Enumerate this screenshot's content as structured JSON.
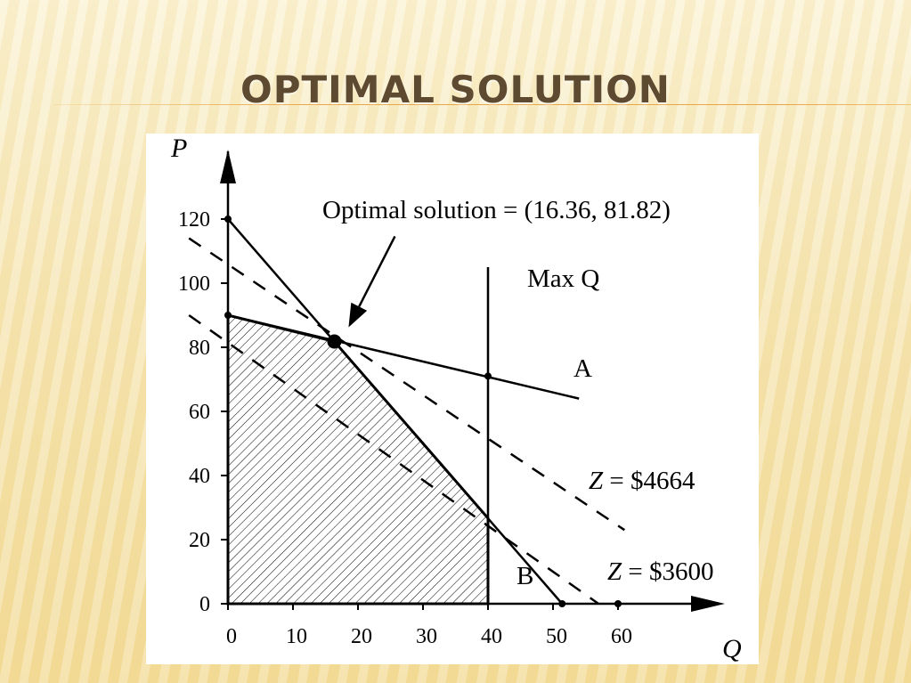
{
  "slide": {
    "title": "OPTIMAL SOLUTION"
  },
  "chart_data": {
    "type": "line",
    "title": "",
    "xlabel": "Q",
    "ylabel": "P",
    "xlim": [
      0,
      60
    ],
    "ylim": [
      0,
      120
    ],
    "x_ticks": [
      "0",
      "10",
      "20",
      "30",
      "40",
      "50",
      "60"
    ],
    "y_ticks": [
      "0",
      "20",
      "40",
      "60",
      "80",
      "100",
      "120"
    ],
    "series": [
      {
        "name": "A",
        "style": "solid",
        "points": [
          [
            0,
            90
          ],
          [
            54,
            64
          ]
        ]
      },
      {
        "name": "B",
        "style": "solid",
        "points": [
          [
            0,
            120
          ],
          [
            51.4,
            0
          ]
        ]
      },
      {
        "name": "Max Q",
        "style": "solid",
        "points": [
          [
            40,
            0
          ],
          [
            40,
            105
          ]
        ]
      },
      {
        "name": "Z = $4664",
        "style": "dashed",
        "points": [
          [
            -6,
            114
          ],
          [
            61,
            23
          ]
        ]
      },
      {
        "name": "Z = $3600",
        "style": "dashed",
        "points": [
          [
            -6,
            90
          ],
          [
            57,
            0
          ]
        ]
      }
    ],
    "feasible_region": [
      [
        0,
        0
      ],
      [
        0,
        90
      ],
      [
        16.36,
        81.82
      ],
      [
        40,
        26.7
      ],
      [
        40,
        0
      ]
    ],
    "marked_points": [
      [
        0,
        120
      ],
      [
        0,
        90
      ],
      [
        40,
        71
      ],
      [
        51.4,
        0
      ],
      [
        60,
        0
      ]
    ],
    "optimal_point": [
      16.36,
      81.82
    ],
    "annotations": {
      "optimal": "Optimal solution = (16.36, 81.82)",
      "max_q": "Max Q",
      "a": "A",
      "b": "B",
      "z_high_var": "Z",
      "z_high_val": " = $4664",
      "z_low_var": "Z",
      "z_low_val": " = $3600"
    }
  }
}
